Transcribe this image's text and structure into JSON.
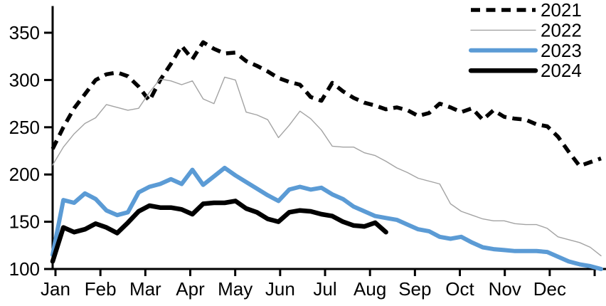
{
  "chart_data": {
    "type": "line",
    "title": "",
    "xlabel": "",
    "ylabel": "",
    "x_axis": {
      "tick_labels": [
        "Jan",
        "Feb",
        "Mar",
        "Apr",
        "May",
        "Jun",
        "Jul",
        "Aug",
        "Sep",
        "Oct",
        "Nov",
        "Dec"
      ],
      "unit": "month"
    },
    "y_axis": {
      "ticks": [
        100,
        150,
        200,
        250,
        300,
        350
      ],
      "range": [
        100,
        360
      ]
    },
    "grid": false,
    "legend_position": "top-right",
    "sampling": "weekly, 52 points per full year",
    "colors": {
      "black": "#000000",
      "gray": "#a3a3a3",
      "blue": "#5b9bd5"
    },
    "series": [
      {
        "name": "2021",
        "color": "#000000",
        "style": "dashed",
        "width": 5.5,
        "values": [
          227,
          250,
          270,
          285,
          300,
          306,
          308,
          304,
          293,
          278,
          300,
          317,
          336,
          322,
          340,
          333,
          328,
          329,
          320,
          315,
          309,
          302,
          298,
          295,
          282,
          278,
          297,
          288,
          281,
          276,
          273,
          269,
          271,
          268,
          262,
          265,
          275,
          271,
          266,
          270,
          258,
          268,
          261,
          259,
          258,
          253,
          251,
          240,
          224,
          209,
          213,
          217
        ]
      },
      {
        "name": "2022",
        "color": "#a3a3a3",
        "style": "solid",
        "width": 1.4,
        "values": [
          210,
          229,
          243,
          254,
          260,
          274,
          271,
          268,
          270,
          287,
          301,
          299,
          295,
          299,
          280,
          275,
          303,
          300,
          266,
          263,
          258,
          239,
          252,
          267,
          259,
          247,
          230,
          229,
          229,
          223,
          220,
          214,
          207,
          202,
          196,
          193,
          190,
          169,
          161,
          157,
          153,
          151,
          151,
          148,
          147,
          147,
          143,
          134,
          131,
          128,
          123,
          114
        ]
      },
      {
        "name": "2023",
        "color": "#5b9bd5",
        "style": "solid",
        "width": 6,
        "values": [
          115,
          173,
          170,
          180,
          174,
          162,
          157,
          160,
          181,
          187,
          190,
          195,
          190,
          205,
          189,
          198,
          207,
          199,
          192,
          185,
          178,
          172,
          184,
          187,
          184,
          186,
          179,
          174,
          166,
          161,
          156,
          154,
          152,
          147,
          142,
          140,
          134,
          132,
          134,
          128,
          123,
          121,
          120,
          119,
          119,
          119,
          118,
          113,
          108,
          105,
          103,
          100
        ]
      },
      {
        "name": "2024",
        "color": "#000000",
        "style": "solid",
        "width": 6.5,
        "values": [
          108,
          144,
          139,
          142,
          148,
          144,
          138,
          149,
          161,
          167,
          165,
          165,
          163,
          158,
          169,
          170,
          170,
          172,
          164,
          160,
          153,
          150,
          160,
          162,
          161,
          158,
          156,
          150,
          146,
          145,
          149,
          139
        ]
      }
    ]
  }
}
